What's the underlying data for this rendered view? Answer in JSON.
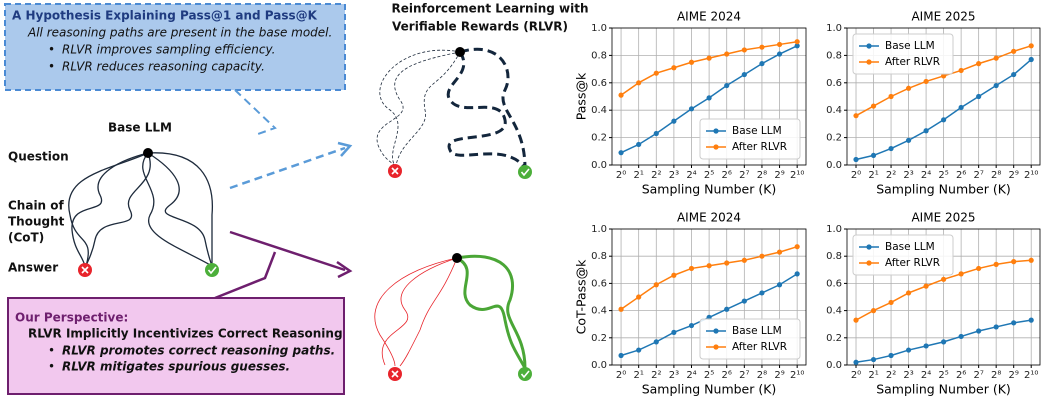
{
  "diagram": {
    "hypothesis": {
      "title": "A Hypothesis Explaining Pass@1 and Pass@K",
      "statement": "All reasoning paths are present in the base model.",
      "bullets": [
        "RLVR improves sampling efficiency.",
        "RLVR reduces reasoning capacity."
      ]
    },
    "base_llm": "Base LLM",
    "question": "Question",
    "cot": [
      "Chain of",
      "Thought",
      "(CoT)"
    ],
    "answer": "Answer",
    "rlvr_title": [
      "Reinforcement Learning with",
      "Verifiable Rewards (RLVR)"
    ],
    "perspective": {
      "title": "Our Perspective:",
      "statement": "RLVR Implicitly Incentivizes Correct Reasoning",
      "bullets": [
        "RLVR promotes correct reasoning paths.",
        "RLVR mitigates spurious guesses."
      ]
    }
  },
  "chart_data": [
    {
      "type": "line",
      "title": "AIME 2024",
      "xlabel": "Sampling Number (K)",
      "ylabel": "Pass@k",
      "x": [
        1,
        2,
        4,
        8,
        16,
        32,
        64,
        128,
        256,
        512,
        1024
      ],
      "xlog_base": 2,
      "xlim": [
        0.7,
        1450
      ],
      "xticks": [
        {
          "value": 1,
          "label": "2⁰"
        },
        {
          "value": 2,
          "label": "2¹"
        },
        {
          "value": 4,
          "label": "2²"
        },
        {
          "value": 8,
          "label": "2³"
        },
        {
          "value": 16,
          "label": "2⁴"
        },
        {
          "value": 32,
          "label": "2⁵"
        },
        {
          "value": 64,
          "label": "2⁶"
        },
        {
          "value": 128,
          "label": "2⁷"
        },
        {
          "value": 256,
          "label": "2⁸"
        },
        {
          "value": 512,
          "label": "2⁹"
        },
        {
          "value": 1024,
          "label": "2¹⁰"
        }
      ],
      "ylim": [
        0,
        1
      ],
      "yticks": [
        {
          "value": 0,
          "label": "0.0"
        },
        0.2,
        0.4,
        0.6,
        0.8,
        {
          "value": 1,
          "label": "1.0"
        }
      ],
      "grid": true,
      "legend": "lower right",
      "series": [
        {
          "name": "Base LLM",
          "color": "#1f77b4",
          "values": [
            0.09,
            0.15,
            0.23,
            0.32,
            0.41,
            0.49,
            0.58,
            0.66,
            0.74,
            0.81,
            0.87
          ]
        },
        {
          "name": "After RLVR",
          "color": "#ff7f0e",
          "values": [
            0.51,
            0.6,
            0.67,
            0.71,
            0.75,
            0.78,
            0.81,
            0.84,
            0.86,
            0.88,
            0.9
          ]
        }
      ]
    },
    {
      "type": "line",
      "title": "AIME 2025",
      "xlabel": "Sampling Number (K)",
      "x": [
        1,
        2,
        4,
        8,
        16,
        32,
        64,
        128,
        256,
        512,
        1024
      ],
      "xlog_base": 2,
      "xlim": [
        0.7,
        1450
      ],
      "xticks": [
        {
          "value": 1,
          "label": "2⁰"
        },
        {
          "value": 2,
          "label": "2¹"
        },
        {
          "value": 4,
          "label": "2²"
        },
        {
          "value": 8,
          "label": "2³"
        },
        {
          "value": 16,
          "label": "2⁴"
        },
        {
          "value": 32,
          "label": "2⁵"
        },
        {
          "value": 64,
          "label": "2⁶"
        },
        {
          "value": 128,
          "label": "2⁷"
        },
        {
          "value": 256,
          "label": "2⁸"
        },
        {
          "value": 512,
          "label": "2⁹"
        },
        {
          "value": 1024,
          "label": "2¹⁰"
        }
      ],
      "ylim": [
        0,
        1
      ],
      "yticks": [
        {
          "value": 0,
          "label": "0.0"
        },
        0.2,
        0.4,
        0.6,
        0.8,
        {
          "value": 1,
          "label": "1.0"
        }
      ],
      "grid": true,
      "legend": "upper left",
      "series": [
        {
          "name": "Base LLM",
          "color": "#1f77b4",
          "values": [
            0.04,
            0.07,
            0.12,
            0.18,
            0.25,
            0.33,
            0.42,
            0.5,
            0.58,
            0.66,
            0.77
          ]
        },
        {
          "name": "After RLVR",
          "color": "#ff7f0e",
          "values": [
            0.36,
            0.43,
            0.5,
            0.56,
            0.61,
            0.65,
            0.69,
            0.74,
            0.78,
            0.83,
            0.87
          ]
        }
      ]
    },
    {
      "type": "line",
      "title": "AIME 2024",
      "xlabel": "Sampling Number (K)",
      "ylabel": "CoT-Pass@k",
      "x": [
        1,
        2,
        4,
        8,
        16,
        32,
        64,
        128,
        256,
        512,
        1024
      ],
      "xlog_base": 2,
      "xlim": [
        0.7,
        1450
      ],
      "xticks": [
        {
          "value": 1,
          "label": "2⁰"
        },
        {
          "value": 2,
          "label": "2¹"
        },
        {
          "value": 4,
          "label": "2²"
        },
        {
          "value": 8,
          "label": "2³"
        },
        {
          "value": 16,
          "label": "2⁴"
        },
        {
          "value": 32,
          "label": "2⁵"
        },
        {
          "value": 64,
          "label": "2⁶"
        },
        {
          "value": 128,
          "label": "2⁷"
        },
        {
          "value": 256,
          "label": "2⁸"
        },
        {
          "value": 512,
          "label": "2⁹"
        },
        {
          "value": 1024,
          "label": "2¹⁰"
        }
      ],
      "ylim": [
        0,
        1
      ],
      "yticks": [
        {
          "value": 0,
          "label": "0.0"
        },
        0.2,
        0.4,
        0.6,
        0.8,
        {
          "value": 1,
          "label": "1.0"
        }
      ],
      "grid": true,
      "legend": "lower right",
      "series": [
        {
          "name": "Base LLM",
          "color": "#1f77b4",
          "values": [
            0.07,
            0.11,
            0.17,
            0.24,
            0.29,
            0.35,
            0.41,
            0.47,
            0.53,
            0.59,
            0.67
          ]
        },
        {
          "name": "After RLVR",
          "color": "#ff7f0e",
          "values": [
            0.41,
            0.5,
            0.59,
            0.66,
            0.71,
            0.73,
            0.75,
            0.77,
            0.8,
            0.83,
            0.87
          ]
        }
      ]
    },
    {
      "type": "line",
      "title": "AIME 2025",
      "xlabel": "Sampling Number (K)",
      "x": [
        1,
        2,
        4,
        8,
        16,
        32,
        64,
        128,
        256,
        512,
        1024
      ],
      "xlog_base": 2,
      "xlim": [
        0.7,
        1450
      ],
      "xticks": [
        {
          "value": 1,
          "label": "2⁰"
        },
        {
          "value": 2,
          "label": "2¹"
        },
        {
          "value": 4,
          "label": "2²"
        },
        {
          "value": 8,
          "label": "2³"
        },
        {
          "value": 16,
          "label": "2⁴"
        },
        {
          "value": 32,
          "label": "2⁵"
        },
        {
          "value": 64,
          "label": "2⁶"
        },
        {
          "value": 128,
          "label": "2⁷"
        },
        {
          "value": 256,
          "label": "2⁸"
        },
        {
          "value": 512,
          "label": "2⁹"
        },
        {
          "value": 1024,
          "label": "2¹⁰"
        }
      ],
      "ylim": [
        0,
        1
      ],
      "yticks": [
        {
          "value": 0,
          "label": "0.0"
        },
        0.2,
        0.4,
        0.6,
        0.8,
        {
          "value": 1,
          "label": "1.0"
        }
      ],
      "grid": true,
      "legend": "upper left",
      "series": [
        {
          "name": "Base LLM",
          "color": "#1f77b4",
          "values": [
            0.02,
            0.04,
            0.07,
            0.11,
            0.14,
            0.17,
            0.21,
            0.25,
            0.28,
            0.31,
            0.33
          ]
        },
        {
          "name": "After RLVR",
          "color": "#ff7f0e",
          "values": [
            0.33,
            0.4,
            0.46,
            0.53,
            0.58,
            0.63,
            0.67,
            0.71,
            0.74,
            0.76,
            0.77
          ]
        }
      ]
    }
  ]
}
